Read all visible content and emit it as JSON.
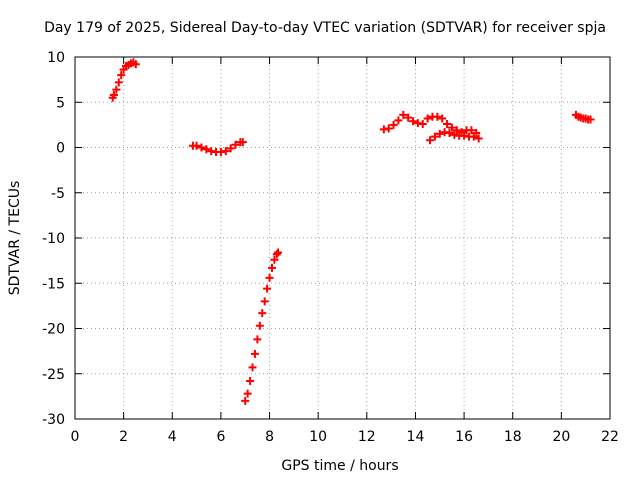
{
  "chart_data": {
    "type": "scatter",
    "title": "Day 179 of 2025, Sidereal Day-to-day VTEC variation (SDTVAR) for receiver spja",
    "xlabel": "GPS time / hours",
    "ylabel": "SDTVAR / TECUs",
    "xlim": [
      0,
      22
    ],
    "ylim": [
      -30,
      10
    ],
    "xticks": [
      0,
      2,
      4,
      6,
      8,
      10,
      12,
      14,
      16,
      18,
      20,
      22
    ],
    "yticks": [
      10,
      5,
      0,
      -5,
      -10,
      -15,
      -20,
      -25,
      -30
    ],
    "grid": true,
    "marker_color": "#ff0000",
    "series": [
      {
        "x": [
          1.55,
          1.6,
          1.7,
          1.8,
          1.9,
          2.0,
          2.1,
          2.2,
          2.3,
          2.4,
          2.5
        ],
        "y": [
          5.5,
          5.8,
          6.4,
          7.2,
          8.0,
          8.6,
          9.0,
          9.1,
          9.3,
          9.4,
          9.2
        ]
      },
      {
        "x": [
          4.85,
          5.0,
          5.2,
          5.4,
          5.6,
          5.8,
          6.0,
          6.2,
          6.4,
          6.6,
          6.8,
          6.9
        ],
        "y": [
          0.2,
          0.2,
          0.0,
          -0.2,
          -0.4,
          -0.5,
          -0.5,
          -0.4,
          -0.1,
          0.3,
          0.6,
          0.6
        ]
      },
      {
        "x": [
          7.0,
          7.1,
          7.2,
          7.3,
          7.4,
          7.5,
          7.6,
          7.7,
          7.8,
          7.9,
          8.0,
          8.1,
          8.2,
          8.3,
          8.35
        ],
        "y": [
          -28.0,
          -27.2,
          -25.8,
          -24.3,
          -22.8,
          -21.2,
          -19.7,
          -18.3,
          -17.0,
          -15.6,
          -14.4,
          -13.3,
          -12.4,
          -11.8,
          -11.6
        ]
      },
      {
        "x": [
          12.7,
          12.9,
          13.1,
          13.3,
          13.5,
          13.7,
          13.9,
          14.1,
          14.3,
          14.5,
          14.7,
          14.9,
          15.1,
          15.3,
          15.5,
          15.7,
          15.9,
          16.1,
          16.3,
          16.5
        ],
        "y": [
          2.0,
          2.1,
          2.5,
          3.0,
          3.6,
          3.3,
          2.9,
          2.7,
          2.6,
          3.2,
          3.4,
          3.4,
          3.2,
          2.6,
          2.2,
          1.9,
          1.7,
          1.9,
          1.9,
          1.6
        ]
      },
      {
        "x": [
          14.6,
          14.8,
          15.0,
          15.2,
          15.4,
          15.6,
          15.8,
          16.0,
          16.2,
          16.4,
          16.6
        ],
        "y": [
          0.8,
          1.2,
          1.5,
          1.7,
          1.6,
          1.4,
          1.3,
          1.3,
          1.2,
          1.2,
          1.0
        ]
      },
      {
        "x": [
          20.6,
          20.7,
          20.8,
          20.9,
          21.0,
          21.1,
          21.2
        ],
        "y": [
          3.6,
          3.4,
          3.3,
          3.2,
          3.2,
          3.1,
          3.1
        ]
      }
    ]
  }
}
